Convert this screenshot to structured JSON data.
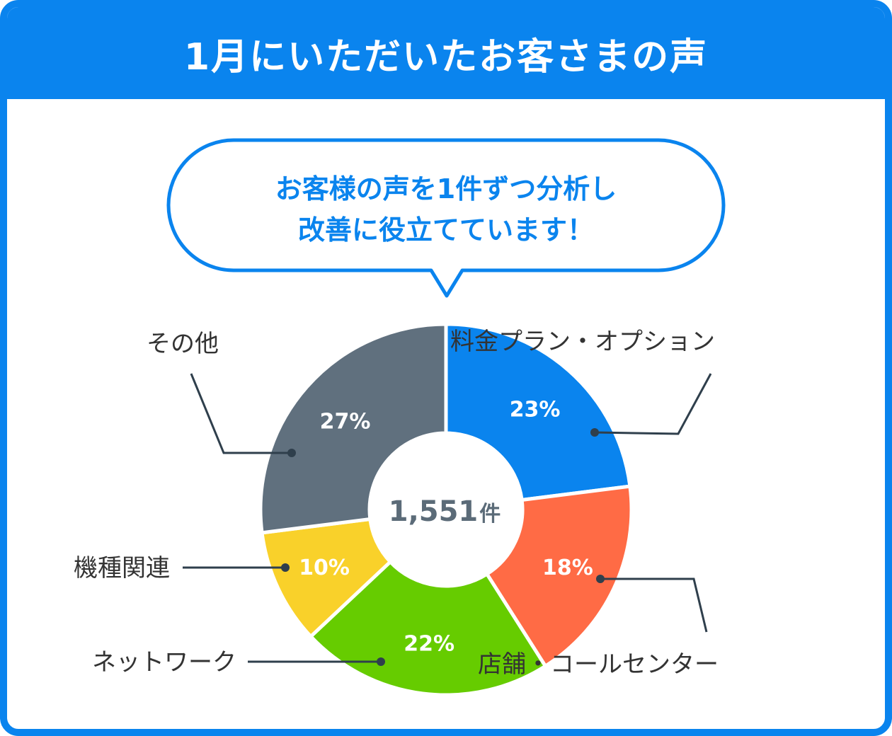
{
  "header": {
    "title": "1月にいただいたお客さまの声"
  },
  "bubble": {
    "lines": [
      "お客様の声を1件ずつ分析し",
      "改善に役立てています！"
    ]
  },
  "colors": {
    "accent": "#0A84EE",
    "leader": "#2f3f4c"
  },
  "chart_data": {
    "type": "pie",
    "total": {
      "value": "1,551",
      "unit": "件"
    },
    "slices": [
      {
        "name": "料金プラン・オプション",
        "value": 23,
        "label": "23%",
        "color": "#0A84EE"
      },
      {
        "name": "店舗・コールセンター",
        "value": 18,
        "label": "18%",
        "color": "#FF6B45"
      },
      {
        "name": "ネットワーク",
        "value": 22,
        "label": "22%",
        "color": "#66CC00"
      },
      {
        "name": "機種関連",
        "value": 10,
        "label": "10%",
        "color": "#F9D12A"
      },
      {
        "name": "その他",
        "value": 27,
        "label": "27%",
        "color": "#60707E"
      }
    ]
  }
}
